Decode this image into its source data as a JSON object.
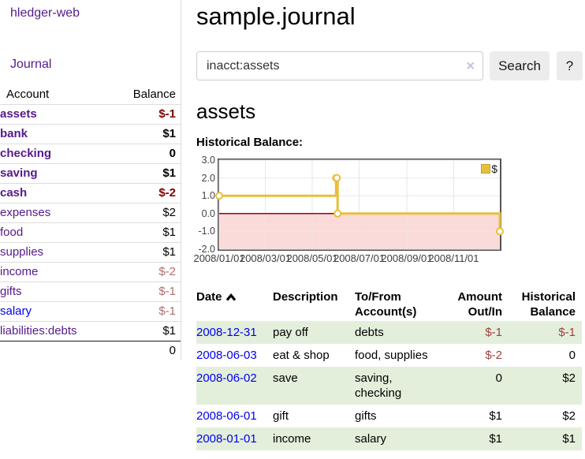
{
  "app": {
    "brand": "hledger-web"
  },
  "sidebar": {
    "journal_link": "Journal",
    "header": {
      "account": "Account",
      "balance": "Balance"
    },
    "accounts": [
      {
        "name": "assets",
        "balance": "$-1"
      },
      {
        "name": "bank",
        "balance": "$1"
      },
      {
        "name": "checking",
        "balance": "0"
      },
      {
        "name": "saving",
        "balance": "$1"
      },
      {
        "name": "cash",
        "balance": "$-2"
      },
      {
        "name": "expenses",
        "balance": "$2"
      },
      {
        "name": "food",
        "balance": "$1"
      },
      {
        "name": "supplies",
        "balance": "$1"
      },
      {
        "name": "income",
        "balance": "$-2"
      },
      {
        "name": "gifts",
        "balance": "$-1"
      },
      {
        "name": "salary",
        "balance": "$-1"
      },
      {
        "name": "liabilities:debts",
        "balance": "$1"
      }
    ],
    "total": "0"
  },
  "main": {
    "title": "sample.journal",
    "search": {
      "value": "inacct:assets",
      "clear_icon": "×",
      "button": "Search",
      "help": "?"
    },
    "account_heading": "assets",
    "chart_label": "Historical Balance:"
  },
  "chart_data": {
    "type": "line",
    "step": true,
    "title": "Historical Balance",
    "series": [
      {
        "name": "$",
        "color": "#e8bf3d",
        "points": [
          {
            "x": "2008-01-01",
            "y": 1
          },
          {
            "x": "2008-06-01",
            "y": 2
          },
          {
            "x": "2008-06-02",
            "y": 2
          },
          {
            "x": "2008-06-03",
            "y": 0
          },
          {
            "x": "2008-12-31",
            "y": -1
          }
        ]
      }
    ],
    "x_range": [
      "2008-01-01",
      "2008-12-31"
    ],
    "ylim": [
      -2,
      3
    ],
    "x_ticks": [
      "2008/01/01",
      "2008/03/01",
      "2008/05/01",
      "2008/07/01",
      "2008/09/01",
      "2008/11/01"
    ],
    "y_ticks": [
      3,
      2,
      1,
      0,
      -1,
      -2
    ],
    "grid": true,
    "negative_region": {
      "from": 0,
      "to": -2,
      "fill": "#fbdada",
      "line_color": "#a00000"
    },
    "legend": {
      "label": "$",
      "position": "top-right"
    }
  },
  "register": {
    "columns": [
      "Date",
      "Description",
      "To/From Account(s)",
      "Amount Out/In",
      "Historical Balance"
    ],
    "rows": [
      {
        "date": "2008-12-31",
        "description": "pay off",
        "accounts": "debts",
        "amount": "$-1",
        "balance": "$-1"
      },
      {
        "date": "2008-06-03",
        "description": "eat & shop",
        "accounts": "food, supplies",
        "amount": "$-2",
        "balance": "0"
      },
      {
        "date": "2008-06-02",
        "description": "save",
        "accounts": "saving, checking",
        "amount": "0",
        "balance": "$2"
      },
      {
        "date": "2008-06-01",
        "description": "gift",
        "accounts": "gifts",
        "amount": "$1",
        "balance": "$2"
      },
      {
        "date": "2008-01-01",
        "description": "income",
        "accounts": "salary",
        "amount": "$1",
        "balance": "$1"
      }
    ]
  }
}
